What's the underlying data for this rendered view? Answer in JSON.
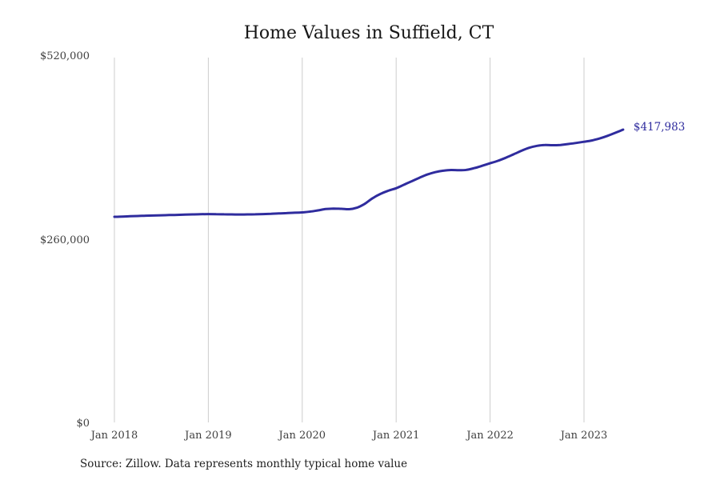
{
  "chart_data": {
    "type": "line",
    "title": "Home Values in Suffield, CT",
    "source": "Source: Zillow. Data represents monthly typical home value",
    "ylim": [
      0,
      520000
    ],
    "grid": "vertical-yearly",
    "legend": "none",
    "line_color": "#2f2c9e",
    "grid_color": "#cccccc",
    "y_ticks": [
      {
        "label": "$0",
        "value": 0
      },
      {
        "label": "$260,000",
        "value": 260000
      },
      {
        "label": "$520,000",
        "value": 520000
      }
    ],
    "x_ticks": [
      {
        "label": "Jan 2018"
      },
      {
        "label": "Jan 2019"
      },
      {
        "label": "Jan 2020"
      },
      {
        "label": "Jan 2021"
      },
      {
        "label": "Jan 2022"
      },
      {
        "label": "Jan 2023"
      }
    ],
    "series": [
      {
        "name": "Monthly typical home value",
        "end_label": "$417,983",
        "final_value": 417983,
        "months": [
          "2018-01",
          "2018-02",
          "2018-03",
          "2018-04",
          "2018-05",
          "2018-06",
          "2018-07",
          "2018-08",
          "2018-09",
          "2018-10",
          "2018-11",
          "2018-12",
          "2019-01",
          "2019-02",
          "2019-03",
          "2019-04",
          "2019-05",
          "2019-06",
          "2019-07",
          "2019-08",
          "2019-09",
          "2019-10",
          "2019-11",
          "2019-12",
          "2020-01",
          "2020-02",
          "2020-03",
          "2020-04",
          "2020-05",
          "2020-06",
          "2020-07",
          "2020-08",
          "2020-09",
          "2020-10",
          "2020-11",
          "2020-12",
          "2021-01",
          "2021-02",
          "2021-03",
          "2021-04",
          "2021-05",
          "2021-06",
          "2021-07",
          "2021-08",
          "2021-09",
          "2021-10",
          "2021-11",
          "2021-12",
          "2022-01",
          "2022-02",
          "2022-03",
          "2022-04",
          "2022-05",
          "2022-06",
          "2022-07",
          "2022-08",
          "2022-09",
          "2022-10",
          "2022-11",
          "2022-12",
          "2023-01",
          "2023-02",
          "2023-03",
          "2023-04",
          "2023-05",
          "2023-06"
        ],
        "values": [
          294500,
          294900,
          295300,
          295700,
          296100,
          296400,
          296700,
          297000,
          297300,
          297600,
          297900,
          298200,
          298400,
          298300,
          298100,
          297900,
          297800,
          297900,
          298100,
          298400,
          298800,
          299300,
          299800,
          300300,
          300800,
          301900,
          303600,
          305500,
          306200,
          305900,
          305300,
          307500,
          313000,
          321000,
          327000,
          331500,
          335000,
          340000,
          345000,
          350000,
          354500,
          357800,
          359800,
          360800,
          360500,
          361000,
          363500,
          366800,
          370300,
          373800,
          378200,
          383000,
          388000,
          392300,
          395000,
          396200,
          395900,
          396300,
          397600,
          399100,
          400800,
          402600,
          405500,
          409200,
          413500,
          417983
        ]
      }
    ]
  }
}
